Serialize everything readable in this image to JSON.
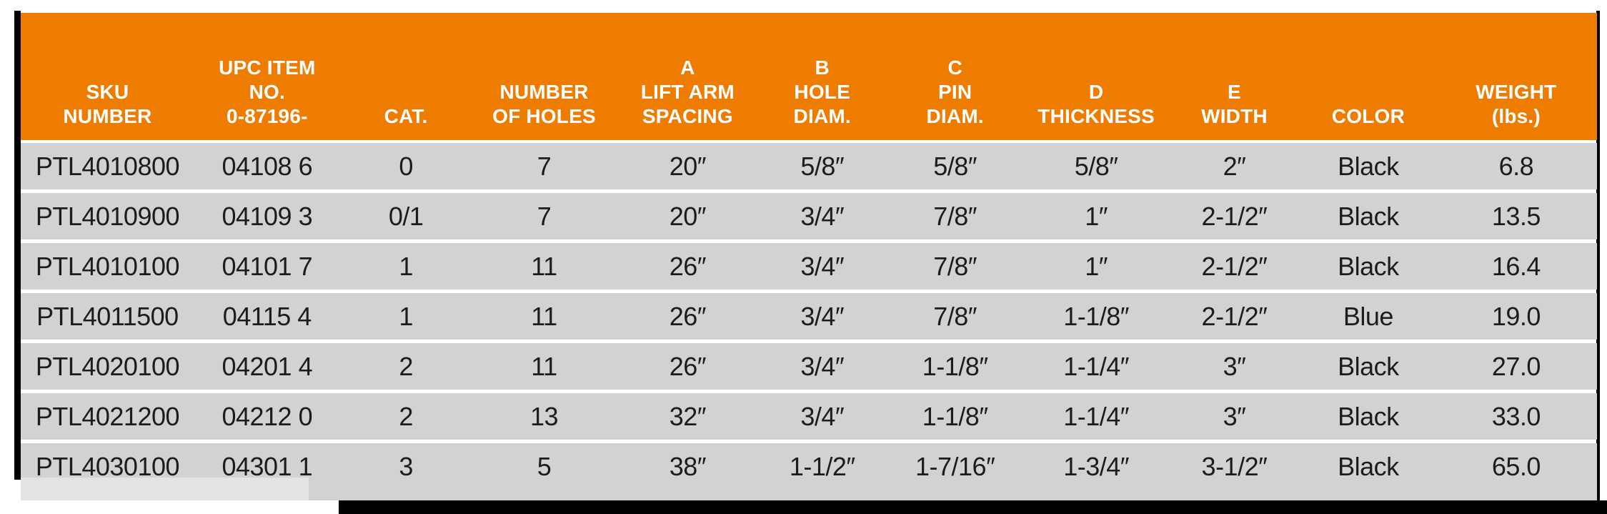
{
  "colors": {
    "header_bg": "#EE7C00",
    "header_text": "#FFFFFF",
    "row_bg": "#D2D2D2",
    "row_bg_light_corner": "#E3E3E3",
    "cell_text": "#1C1C1E",
    "accent_bar": "#000000",
    "page_bg": "#FFFFFF"
  },
  "table": {
    "columns": [
      {
        "id": "sku",
        "label": "SKU\nNUMBER"
      },
      {
        "id": "upc",
        "label": "UPC ITEM\nNO.\n0-87196-"
      },
      {
        "id": "cat",
        "label": "CAT."
      },
      {
        "id": "holes",
        "label": "NUMBER\nOF HOLES"
      },
      {
        "id": "a-lift-arm-spacing",
        "label": "A\nLIFT ARM\nSPACING"
      },
      {
        "id": "b-hole-diam",
        "label": "B\nHOLE\nDIAM."
      },
      {
        "id": "c-pin-diam",
        "label": "C\nPIN\nDIAM."
      },
      {
        "id": "d-thickness",
        "label": "D\nTHICKNESS"
      },
      {
        "id": "e-width",
        "label": "E\nWIDTH"
      },
      {
        "id": "color",
        "label": "COLOR"
      },
      {
        "id": "weight",
        "label": "WEIGHT\n(lbs.)"
      }
    ],
    "rows": [
      [
        "PTL4010800",
        "04108 6",
        "0",
        "7",
        "20″",
        "5/8″",
        "5/8″",
        "5/8″",
        "2″",
        "Black",
        "6.8"
      ],
      [
        "PTL4010900",
        "04109 3",
        "0/1",
        "7",
        "20″",
        "3/4″",
        "7/8″",
        "1″",
        "2-1/2″",
        "Black",
        "13.5"
      ],
      [
        "PTL4010100",
        "04101 7",
        "1",
        "11",
        "26″",
        "3/4″",
        "7/8″",
        "1″",
        "2-1/2″",
        "Black",
        "16.4"
      ],
      [
        "PTL4011500",
        "04115 4",
        "1",
        "11",
        "26″",
        "3/4″",
        "7/8″",
        "1-1/8″",
        "2-1/2″",
        "Blue",
        "19.0"
      ],
      [
        "PTL4020100",
        "04201 4",
        "2",
        "11",
        "26″",
        "3/4″",
        "1-1/8″",
        "1-1/4″",
        "3″",
        "Black",
        "27.0"
      ],
      [
        "PTL4021200",
        "04212 0",
        "2",
        "13",
        "32″",
        "3/4″",
        "1-1/8″",
        "1-1/4″",
        "3″",
        "Black",
        "33.0"
      ],
      [
        "PTL4030100",
        "04301 1",
        "3",
        "5",
        "38″",
        "1-1/2″",
        "1-7/16″",
        "1-3/4″",
        "3-1/2″",
        "Black",
        "65.0"
      ]
    ]
  }
}
